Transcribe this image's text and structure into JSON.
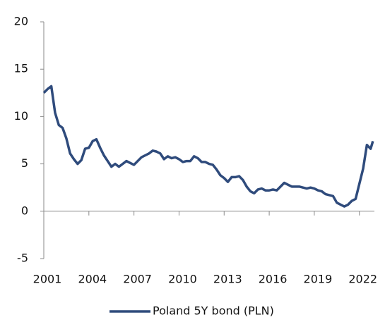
{
  "chart_data": {
    "type": "line",
    "x": [
      2001.0,
      2001.25,
      2001.5,
      2001.75,
      2002.0,
      2002.25,
      2002.5,
      2002.75,
      2003.0,
      2003.25,
      2003.5,
      2003.75,
      2004.0,
      2004.25,
      2004.5,
      2004.75,
      2005.0,
      2005.25,
      2005.5,
      2005.75,
      2006.0,
      2006.25,
      2006.5,
      2006.75,
      2007.0,
      2007.25,
      2007.5,
      2007.75,
      2008.0,
      2008.25,
      2008.5,
      2008.75,
      2009.0,
      2009.25,
      2009.5,
      2009.75,
      2010.0,
      2010.25,
      2010.5,
      2010.75,
      2011.0,
      2011.25,
      2011.5,
      2011.75,
      2012.0,
      2012.25,
      2012.5,
      2012.75,
      2013.0,
      2013.25,
      2013.5,
      2013.75,
      2014.0,
      2014.25,
      2014.5,
      2014.75,
      2015.0,
      2015.25,
      2015.5,
      2015.75,
      2016.0,
      2016.25,
      2016.5,
      2016.75,
      2017.0,
      2017.25,
      2017.5,
      2017.75,
      2018.0,
      2018.25,
      2018.5,
      2018.75,
      2019.0,
      2019.25,
      2019.5,
      2019.75,
      2020.0,
      2020.25,
      2020.5,
      2020.75,
      2021.0,
      2021.25,
      2021.5,
      2021.75,
      2022.0,
      2022.25,
      2022.5,
      2022.75,
      2022.9
    ],
    "series": [
      {
        "name": "Poland 5Y bond (PLN)",
        "color": "#2f4b7c",
        "values": [
          12.5,
          12.9,
          13.2,
          10.4,
          9.1,
          8.8,
          7.7,
          6.1,
          5.5,
          5.0,
          5.4,
          6.6,
          6.7,
          7.4,
          7.6,
          6.7,
          5.9,
          5.3,
          4.7,
          5.0,
          4.7,
          5.0,
          5.3,
          5.1,
          4.9,
          5.3,
          5.7,
          5.9,
          6.1,
          6.4,
          6.3,
          6.1,
          5.5,
          5.8,
          5.6,
          5.7,
          5.5,
          5.2,
          5.3,
          5.3,
          5.8,
          5.6,
          5.2,
          5.2,
          5.0,
          4.9,
          4.4,
          3.8,
          3.5,
          3.1,
          3.6,
          3.6,
          3.7,
          3.3,
          2.6,
          2.1,
          1.9,
          2.3,
          2.4,
          2.2,
          2.2,
          2.3,
          2.2,
          2.6,
          3.0,
          2.8,
          2.6,
          2.6,
          2.6,
          2.5,
          2.4,
          2.5,
          2.4,
          2.2,
          2.1,
          1.8,
          1.7,
          1.6,
          0.9,
          0.7,
          0.5,
          0.7,
          1.1,
          1.3,
          2.9,
          4.5,
          7.0,
          6.6,
          7.4
        ]
      }
    ],
    "xlim": [
      2001,
      2023
    ],
    "xticks": [
      2001,
      2004,
      2007,
      2010,
      2013,
      2016,
      2019,
      2022
    ],
    "ylim": [
      -5,
      20
    ],
    "yticks": [
      -5,
      0,
      5,
      10,
      15,
      20
    ]
  }
}
